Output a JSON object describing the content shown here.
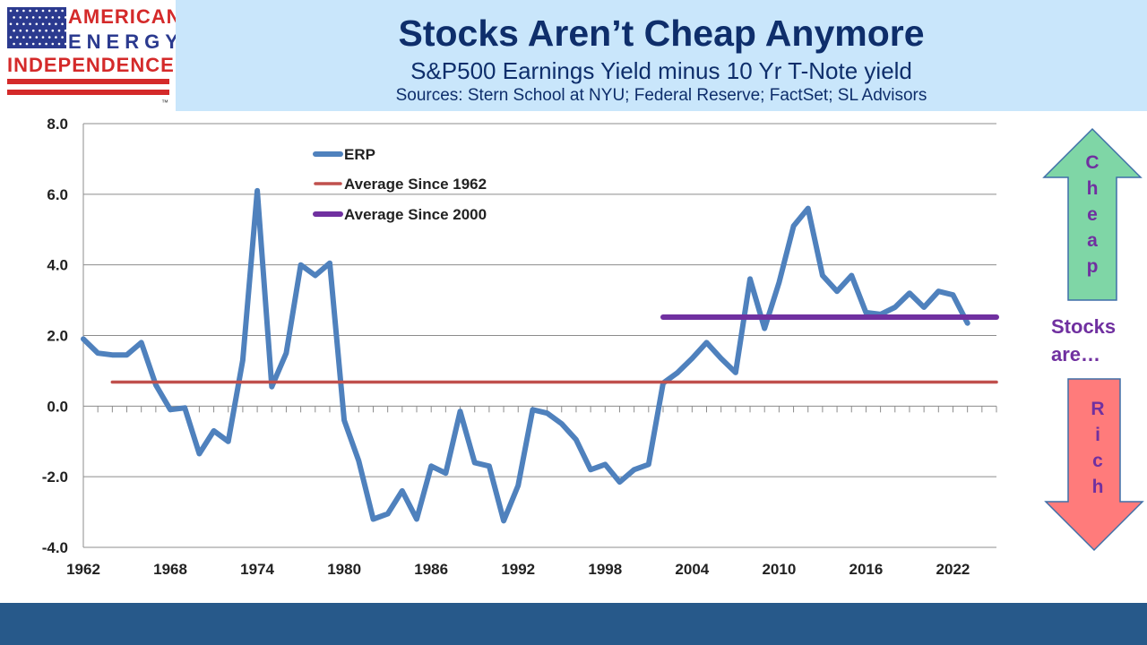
{
  "logo": {
    "line1": "AMERICAN",
    "line2": "ENERGY",
    "line3": "INDEPENDENCE",
    "mark": "™"
  },
  "header": {
    "title": "Stocks Aren’t Cheap Anymore",
    "subtitle": "S&P500 Earnings Yield minus 10 Yr T-Note yield",
    "sources": "Sources: Stern School at NYU; Federal Reserve; FactSet; SL Advisors"
  },
  "side": {
    "cheap_letters": [
      "C",
      "h",
      "e",
      "a",
      "p"
    ],
    "rich_letters": [
      "R",
      "i",
      "c",
      "h"
    ],
    "middle_line1": "Stocks",
    "middle_line2": "are…",
    "cheap_color": "#7fd6a6",
    "rich_color": "#ff7b7b",
    "text_color": "#7030a0"
  },
  "colors": {
    "header_bg": "#c9e6fb",
    "title": "#0e2e6b",
    "footer": "#27598a",
    "logo_red": "#d42a2a",
    "logo_blue": "#2b3a8f"
  },
  "chart_data": {
    "type": "line",
    "title": "",
    "xlabel": "",
    "ylabel": "",
    "ylim": [
      -4.0,
      8.0
    ],
    "xlim": [
      1962,
      2025
    ],
    "y_ticks": [
      "8.0",
      "6.0",
      "4.0",
      "2.0",
      "0.0",
      "-2.0",
      "-4.0"
    ],
    "x_ticks": [
      "1962",
      "1968",
      "1974",
      "1980",
      "1986",
      "1992",
      "1998",
      "2004",
      "2010",
      "2016",
      "2022"
    ],
    "legend_position": "top-left",
    "grid": "horizontal",
    "series": [
      {
        "name": "ERP",
        "color": "#4f81bd",
        "x": [
          1962,
          1963,
          1964,
          1965,
          1966,
          1967,
          1968,
          1969,
          1970,
          1971,
          1972,
          1973,
          1974,
          1975,
          1976,
          1977,
          1978,
          1979,
          1980,
          1981,
          1982,
          1983,
          1984,
          1985,
          1986,
          1987,
          1988,
          1989,
          1990,
          1991,
          1992,
          1993,
          1994,
          1995,
          1996,
          1997,
          1998,
          1999,
          2000,
          2001,
          2002,
          2003,
          2004,
          2005,
          2006,
          2007,
          2008,
          2009,
          2010,
          2011,
          2012,
          2013,
          2014,
          2015,
          2016,
          2017,
          2018,
          2019,
          2020,
          2021,
          2022,
          2023
        ],
        "values": [
          1.9,
          1.5,
          1.45,
          1.45,
          1.8,
          0.6,
          -0.1,
          -0.05,
          -1.35,
          -0.7,
          -1.0,
          1.3,
          6.1,
          0.55,
          1.5,
          4.0,
          3.7,
          4.05,
          -0.4,
          -1.55,
          -3.2,
          -3.05,
          -2.4,
          -3.2,
          -1.7,
          -1.9,
          -0.15,
          -1.6,
          -1.7,
          -3.25,
          -2.25,
          -0.1,
          -0.2,
          -0.5,
          -0.95,
          -1.8,
          -1.65,
          -2.15,
          -1.8,
          -1.65,
          0.65,
          0.95,
          1.35,
          1.8,
          1.35,
          0.95,
          3.6,
          2.2,
          3.5,
          5.1,
          5.6,
          3.7,
          3.25,
          3.7,
          2.65,
          2.6,
          2.8,
          3.2,
          2.8,
          3.25,
          3.15,
          2.35
        ]
      },
      {
        "name": "Average Since 1962",
        "color": "#c0504d",
        "x": [
          1964,
          2025
        ],
        "values": [
          0.68,
          0.68
        ]
      },
      {
        "name": "Average Since 2000",
        "color": "#7030a0",
        "x": [
          2002,
          2025
        ],
        "values": [
          2.52,
          2.52
        ]
      }
    ]
  }
}
